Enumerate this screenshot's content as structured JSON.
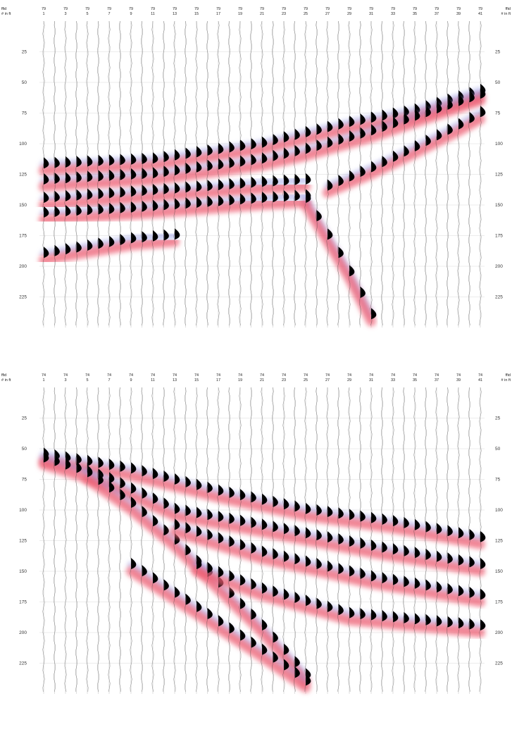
{
  "chart_data": [
    {
      "type": "heatmap",
      "header_labels": [
        "ffid",
        "# in ft"
      ],
      "ffid": "79",
      "channels": [
        1,
        3,
        5,
        7,
        9,
        11,
        13,
        15,
        17,
        19,
        21,
        23,
        25,
        27,
        29,
        31,
        33,
        35,
        37,
        39,
        41
      ],
      "y_ticks": [
        25,
        50,
        75,
        100,
        125,
        150,
        175,
        200,
        225
      ],
      "ylim": [
        0,
        250
      ],
      "events": [
        {
          "polarity": "positive",
          "points": [
            [
              1,
              122
            ],
            [
              11,
              118
            ],
            [
              21,
              105
            ],
            [
              29,
              88
            ],
            [
              35,
              78
            ],
            [
              41,
              62
            ]
          ]
        },
        {
          "polarity": "positive",
          "points": [
            [
              1,
              135
            ],
            [
              11,
              130
            ],
            [
              21,
              118
            ],
            [
              25,
              110
            ],
            [
              31,
              95
            ],
            [
              41,
              65
            ]
          ]
        },
        {
          "polarity": "positive",
          "points": [
            [
              1,
              150
            ],
            [
              9,
              145
            ],
            [
              21,
              137
            ],
            [
              25,
              135
            ]
          ]
        },
        {
          "polarity": "positive",
          "points": [
            [
              1,
              162
            ],
            [
              9,
              158
            ],
            [
              21,
              150
            ],
            [
              25,
              148
            ]
          ]
        },
        {
          "polarity": "positive",
          "points": [
            [
              27,
              140
            ],
            [
              31,
              125
            ],
            [
              35,
              108
            ],
            [
              39,
              90
            ],
            [
              41,
              80
            ]
          ]
        },
        {
          "polarity": "positive",
          "points": [
            [
              25,
              150
            ],
            [
              27,
              180
            ],
            [
              29,
              210
            ],
            [
              31,
              245
            ]
          ]
        },
        {
          "polarity": "positive",
          "points": [
            [
              1,
              195
            ],
            [
              9,
              183
            ],
            [
              13,
              180
            ]
          ]
        }
      ]
    },
    {
      "type": "heatmap",
      "header_labels": [
        "ffid",
        "# in ft"
      ],
      "ffid": "74",
      "channels": [
        1,
        3,
        5,
        7,
        9,
        11,
        13,
        15,
        17,
        19,
        21,
        23,
        25,
        27,
        29,
        31,
        33,
        35,
        37,
        39,
        41
      ],
      "y_ticks": [
        25,
        50,
        75,
        100,
        125,
        150,
        175,
        200,
        225
      ],
      "ylim": [
        0,
        250
      ],
      "events": [
        {
          "polarity": "positive",
          "points": [
            [
              1,
              60
            ],
            [
              9,
              72
            ],
            [
              17,
              90
            ],
            [
              25,
              105
            ],
            [
              33,
              115
            ],
            [
              41,
              128
            ]
          ]
        },
        {
          "polarity": "positive",
          "points": [
            [
              1,
              63
            ],
            [
              7,
              80
            ],
            [
              13,
              105
            ],
            [
              21,
              118
            ],
            [
              31,
              135
            ],
            [
              41,
              150
            ]
          ]
        },
        {
          "polarity": "positive",
          "points": [
            [
              5,
              75
            ],
            [
              9,
              100
            ],
            [
              13,
              130
            ],
            [
              17,
              165
            ],
            [
              21,
              200
            ],
            [
              25,
              240
            ]
          ]
        },
        {
          "polarity": "positive",
          "points": [
            [
              13,
              118
            ],
            [
              21,
              140
            ],
            [
              31,
              160
            ],
            [
              41,
              175
            ]
          ]
        },
        {
          "polarity": "positive",
          "points": [
            [
              9,
              150
            ],
            [
              15,
              185
            ],
            [
              21,
              220
            ],
            [
              25,
              245
            ]
          ]
        },
        {
          "polarity": "positive",
          "points": [
            [
              15,
              150
            ],
            [
              21,
              170
            ],
            [
              29,
              190
            ],
            [
              41,
              200
            ]
          ]
        }
      ]
    }
  ]
}
